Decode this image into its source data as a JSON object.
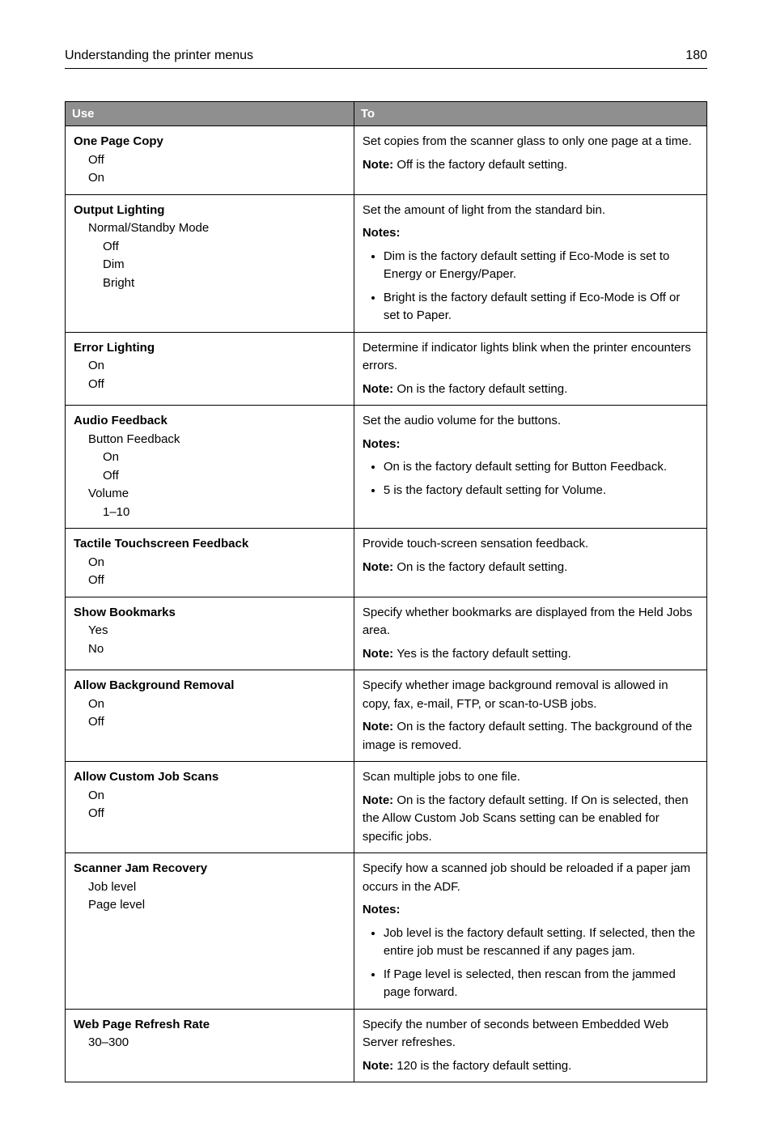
{
  "header": {
    "title": "Understanding the printer menus",
    "page": "180"
  },
  "columns": {
    "use": "Use",
    "to": "To"
  },
  "labels": {
    "note": "Note:",
    "notes": "Notes:"
  },
  "rows": [
    {
      "use": {
        "title": "One Page Copy",
        "items": [
          {
            "text": "Off",
            "indent": 1
          },
          {
            "text": "On",
            "indent": 1
          }
        ]
      },
      "to": {
        "desc": "Set copies from the scanner glass to only one page at a time.",
        "note": "Off is the factory default setting."
      }
    },
    {
      "use": {
        "title": "Output Lighting",
        "items": [
          {
            "text": "Normal/Standby Mode",
            "indent": 1
          },
          {
            "text": "Off",
            "indent": 2
          },
          {
            "text": "Dim",
            "indent": 2
          },
          {
            "text": "Bright",
            "indent": 2
          }
        ]
      },
      "to": {
        "desc": "Set the amount of light from the standard bin.",
        "notes": [
          "Dim is the factory default setting if Eco-Mode is set to Energy or Energy/Paper.",
          "Bright is the factory default setting if Eco-Mode is Off or set to Paper."
        ]
      }
    },
    {
      "use": {
        "title": "Error Lighting",
        "items": [
          {
            "text": "On",
            "indent": 1
          },
          {
            "text": "Off",
            "indent": 1
          }
        ]
      },
      "to": {
        "desc": "Determine if indicator lights blink when the printer encounters errors.",
        "note": "On is the factory default setting."
      }
    },
    {
      "use": {
        "title": "Audio Feedback",
        "items": [
          {
            "text": "Button Feedback",
            "indent": 1
          },
          {
            "text": "On",
            "indent": 2
          },
          {
            "text": "Off",
            "indent": 2
          },
          {
            "text": "Volume",
            "indent": 1
          },
          {
            "text": "1–10",
            "indent": 2
          }
        ]
      },
      "to": {
        "desc": "Set the audio volume for the buttons.",
        "notes": [
          "On is the factory default setting for Button Feedback.",
          "5 is the factory default setting for Volume."
        ]
      }
    },
    {
      "use": {
        "title": "Tactile Touchscreen Feedback",
        "items": [
          {
            "text": "On",
            "indent": 1
          },
          {
            "text": "Off",
            "indent": 1
          }
        ]
      },
      "to": {
        "desc": "Provide touch-screen sensation feedback.",
        "note": "On is the factory default setting."
      }
    },
    {
      "use": {
        "title": "Show Bookmarks",
        "items": [
          {
            "text": "Yes",
            "indent": 1
          },
          {
            "text": "No",
            "indent": 1
          }
        ]
      },
      "to": {
        "desc": "Specify whether bookmarks are displayed from the Held Jobs area.",
        "note": "Yes is the factory default setting."
      }
    },
    {
      "use": {
        "title": "Allow Background Removal",
        "items": [
          {
            "text": "On",
            "indent": 1
          },
          {
            "text": "Off",
            "indent": 1
          }
        ]
      },
      "to": {
        "desc": "Specify whether image background removal is allowed in copy, fax, e-mail, FTP, or scan-to-USB jobs.",
        "note": "On is the factory default setting. The background of the image is removed."
      }
    },
    {
      "use": {
        "title": "Allow Custom Job Scans",
        "items": [
          {
            "text": "On",
            "indent": 1
          },
          {
            "text": "Off",
            "indent": 1
          }
        ]
      },
      "to": {
        "desc": "Scan multiple jobs to one file.",
        "note": "On is the factory default setting. If On is selected, then the Allow Custom Job Scans setting can be enabled for specific jobs."
      }
    },
    {
      "use": {
        "title": "Scanner Jam Recovery",
        "items": [
          {
            "text": "Job level",
            "indent": 1
          },
          {
            "text": "Page level",
            "indent": 1
          }
        ]
      },
      "to": {
        "desc": "Specify how a scanned job should be reloaded if a paper jam occurs in the ADF.",
        "notes": [
          "Job level is the factory default setting. If selected, then the entire job must be rescanned if any pages jam.",
          "If Page level is selected, then rescan from the jammed page forward."
        ]
      }
    },
    {
      "use": {
        "title": "Web Page Refresh Rate",
        "items": [
          {
            "text": "30–300",
            "indent": 1
          }
        ]
      },
      "to": {
        "desc": "Specify the number of seconds between Embedded Web Server refreshes.",
        "note": "120 is the factory default setting."
      }
    }
  ]
}
